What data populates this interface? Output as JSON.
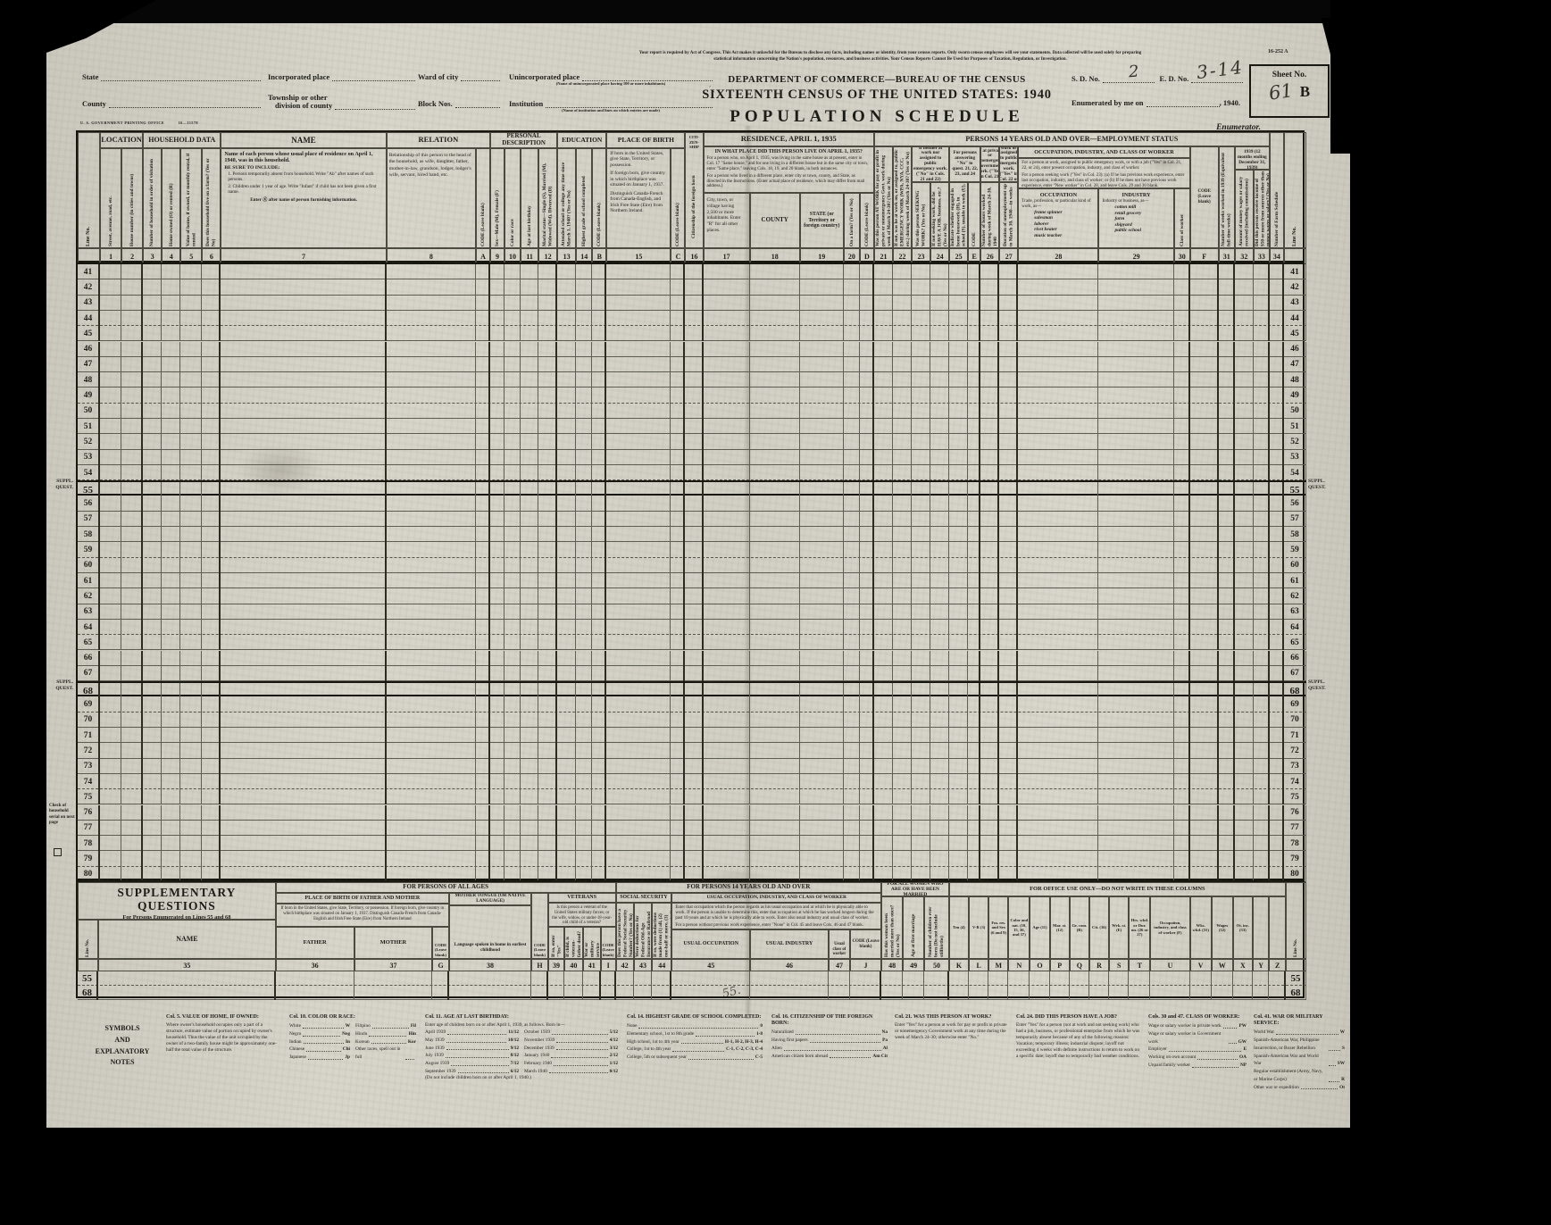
{
  "form_meta": {
    "form_number": "16-252 A",
    "printing_office": "U. S. GOVERNMENT PRINTING OFFICE",
    "printing_code": "16—11578"
  },
  "masthead": {
    "legal_notice": "Your report is required by Act of Congress. This Act makes it unlawful for the Bureau to disclose any facts, including names or identity, from your census reports. Only sworn census employees will see your statements. Data collected will be used solely for preparing statistical information concerning the Nation's population, resources, and business activities. Your Census Reports Cannot Be Used for Purposes of Taxation, Regulation, or Investigation.",
    "department": "DEPARTMENT OF COMMERCE—BUREAU OF THE CENSUS",
    "census": "SIXTEENTH CENSUS OF THE UNITED STATES: 1940",
    "schedule": "POPULATION SCHEDULE",
    "fields": {
      "state": "State",
      "county": "County",
      "incorporated_place": "Incorporated place",
      "township_line1": "Township or other",
      "township_line2": "division of county",
      "ward": "Ward of city",
      "block": "Block Nos.",
      "unincorporated": "Unincorporated place",
      "unincorporated_note": "(Name of unincorporated place having 100 or more inhabitants)",
      "institution": "Institution",
      "institution_note": "(Name of institution and lines on which entries are made)"
    },
    "sd_label": "S. D. No.",
    "sd_value": "2",
    "ed_label": "E. D. No.",
    "ed_value": "3-14",
    "sheet_label": "Sheet No.",
    "sheet_value": "61",
    "sheet_series": "B",
    "enumerated_label": "Enumerated by me on",
    "year_suffix": ", 1940.",
    "enumerator": "Enumerator."
  },
  "annotations": {
    "stray_mark": "55."
  },
  "main_table": {
    "line_start": 41,
    "line_end": 80,
    "bold_lines": [
      55,
      68
    ],
    "margin_marker_line1": "SUPPL.",
    "margin_marker_line2": "QUEST.",
    "margin_note": "Check of household serial on next page",
    "groups": {
      "location": "LOCATION",
      "household": "HOUSEHOLD DATA",
      "name": "NAME",
      "relation": "RELATION",
      "personal": "PERSONAL DESCRIPTION",
      "education": "EDUCATION",
      "pob": "PLACE OF BIRTH",
      "residence": "RESIDENCE, APRIL 1, 1935",
      "employment": "PERSONS 14 YEARS OLD AND OVER—EMPLOYMENT STATUS",
      "g2324": "If neither at work nor assigned to public emergency work. (\"No\" in Cols. 21 and 22)",
      "g25": "For persons answering \"No\" to quest. 21, 22, 23, and 24",
      "g26": "If at private or nonemergency Government work. (\"Yes\" in Col. 21)",
      "g27": "If seeking work or assigned to public emergency work. (\"Yes\" in Col. 22 or 23)",
      "occ_banner": "OCCUPATION, INDUSTRY, AND CLASS OF WORKER",
      "income": "INCOME IN 1939 (12 months ending December 31, 1939)"
    },
    "cols": {
      "line_no": "Line No.",
      "code": "CODE (Leave blank)",
      "e_code": "CODE",
      "c1": "Street, avenue, road, etc.",
      "c2": "House number (in cities and towns)",
      "c3": "Number of household in order of visitation",
      "c4": "Home owned (O) or rented (R)",
      "c5": "Value of home, if owned, or monthly rental, if rented",
      "c6": "Does this household live on a farm? (Yes or No)",
      "c8": "Relationship of this person to the head of the household, as wife, daughter, father, mother-in-law, grandson, lodger, lodger's wife, servant, hired hand, etc.",
      "c9": "Sex—Male (M), Female (F)",
      "c10": "Color or race",
      "c11": "Age at last birthday",
      "c12": "Marital status—Single (S), Married (M), Widowed (Wd), Divorced (D)",
      "c13": "Attended school or college any time since March 1, 1940? (Yes or No)",
      "c14": "Highest grade of school completed",
      "c16_top": [
        "CITI-",
        "ZEN-",
        "SHIP"
      ],
      "c16": "Citizenship of the foreign born",
      "c17": "City, town, or village having 2,500 or more inhabitants. Enter \"R\" for all other places.",
      "c18": "COUNTY",
      "c19": "STATE (or Territory or foreign country)",
      "c20": "On a farm? (Yes or No)",
      "c21": "Was this person AT WORK for pay or profit in private or nonemergency Govt. work during week of March 24-30? (Yes or No)",
      "c22": "If not, was he at work on, or assigned to, public EMERGENCY WORK (WPA, NYA, CCC, etc.) during week of March 24-30? (Yes or No)",
      "c23": "Was this person SEEKING WORK? (Yes or No)",
      "c24": "If not seeking work, did he HAVE A JOB, business, etc.? (Yes or No)",
      "c25": "Indicate whether engaged in home housework (H), in school (S), unable to work (U), or other (Ot)",
      "c26": "Number of hours worked during week of March 24-30, 1940",
      "c27": "Duration of unemployment up to March 30, 1940—in weeks",
      "c30": "Class of worker",
      "c31": "Number of weeks worked in 1939 (Equivalent full-time weeks)",
      "c32": "Amount of money wages or salary received (including commissions)",
      "c33": "Did this person receive income of $50 or more from sources other than money wages or salary? (Yes or No)",
      "c34": "Number of Farm Schedule"
    },
    "name_col": {
      "title": "Name of each person whose usual place of residence on April 1, 1940, was in this household.",
      "be_sure": "BE SURE TO INCLUDE:",
      "item1": "1. Persons temporarily absent from household. Write \"Ab\" after names of such persons.",
      "item2": "2. Children under 1 year of age. Write \"Infant\" if child has not been given a first name.",
      "enter_note": "Enter Ⓧ after name of person furnishing information."
    },
    "pob_col": {
      "p1": "If born in the United States, give State, Territory, or possession.",
      "p2": "If foreign born, give country in which birthplace was situated on January 1, 1937.",
      "p3": "Distinguish Canada-French from Canada-English, and Irish Free State (Eire) from Northern Ireland."
    },
    "residence": {
      "question": "IN WHAT PLACE DID THIS PERSON LIVE ON APRIL 1, 1935?",
      "p1": "For a person who, on April 1, 1935, was living in the same house as at present, enter in Col. 17 \"Same house,\" and for one living in a different house but in the same city or town, enter \"Same place,\" leaving Cols. 18, 19, and 20 blank, in both instances.",
      "p2": "For a person who lived in a different place, enter city or town, county, and State, as directed in the Instructions. (Enter actual place of residence, which may differ from mail address.)"
    },
    "occ": {
      "p1": "For a person at work, assigned to public emergency work, or with a job (\"Yes\" in Col. 21, 22, or 24), enter present occupation, industry, and class of worker.",
      "p2": "For a person seeking work (\"Yes\" in Col. 23): (a) If he has previous work experience, enter last occupation, industry, and class of worker; or (b) If he does not have previous work experience, enter \"New worker\" in Col. 28, and leave Cols. 29 and 30 blank.",
      "occupation": {
        "title": "OCCUPATION",
        "lead": "Trade, profession, or particular kind of work, as—",
        "examples": [
          "frame spinner",
          "salesman",
          "laborer",
          "rivet heater",
          "music teacher"
        ]
      },
      "industry": {
        "title": "INDUSTRY",
        "lead": "Industry or business, as—",
        "examples": [
          "cotton mill",
          "retail grocery",
          "farm",
          "shipyard",
          "public school"
        ]
      }
    }
  },
  "supplementary": {
    "box": {
      "title": "SUPPLEMENTARY QUESTIONS",
      "subtitle": "For Persons Enumerated on Lines 55 and 68"
    },
    "banners": {
      "all_ages": "FOR PERSONS OF ALL AGES",
      "fourteen": "FOR PERSONS 14 YEARS OLD AND OVER",
      "women": "FOR ALL WOMEN WHO ARE OR HAVE BEEN MARRIED",
      "office": "FOR OFFICE USE ONLY—DO NOT WRITE IN THESE COLUMNS"
    },
    "groups": {
      "pob_fm": "PLACE OF BIRTH OF FATHER AND MOTHER",
      "pob_desc": "If born in the United States, give State, Territory, or possession. If foreign born, give country in which birthplace was situated on January 1, 1937. Distinguish Canada-French from Canada-English and Irish Free State (Eire) from Northern Ireland",
      "mother_tongue": "MOTHER TONGUE (OR NATIVE LANGUAGE)",
      "veterans": "VETERANS",
      "veterans_q": "Is this person a veteran of the United States military forces; or the wife, widow, or under-18-year-old child of a veteran?",
      "social_security": "SOCIAL SECURITY",
      "usual_banner": "USUAL OCCUPATION, INDUSTRY, AND CLASS OF WORKER",
      "usual_p1": "Enter that occupation which the person regards as his usual occupation and at which he is physically able to work. If the person is unable to determine this, enter that occupation at which he has worked longest during the past 10 years and at which he is physically able to work. Enter also usual industry and usual class of worker.",
      "usual_p2": "For a person without previous work experience, enter \"None\" in Col. 45 and leave Cols. 46 and 47 blank."
    },
    "cols": {
      "line_no": "Line No.",
      "name": "NAME",
      "father": "FATHER",
      "mother": "MOTHER",
      "code": "CODE (Leave blank)",
      "c38": "Language spoken in home in earliest childhood",
      "c39": "If so, enter \"Yes\"",
      "c40": "If child, is veteran-father dead? (Yes or No)",
      "c41": "War or military service",
      "c42": "Does this person have a Federal Social Security Number? (Yes or No)",
      "c43": "Were deductions for Federal Old-Age Insurance or Railroad Retirement made from this person's wages or salary in 1939? (Yes or No)",
      "c44": "If so, were deductions made from (1) all, (2) one-half or more, (3) part, but less than half, of wages or salary?",
      "c45": "USUAL OCCUPATION",
      "c46": "USUAL INDUSTRY",
      "c47": "Usual class of worker",
      "c48": "Has this woman been married more than once? (Yes or No)",
      "c49": "Age at first marriage",
      "c50": "Number of children ever born (Do not include stillbirths)"
    },
    "office": {
      "K": "Ten (4)",
      "L": "V-R (3)",
      "M": "Fm. res. and Sex (6 and 9)",
      "N": "Color and nat. (10, 15, 36, and 37)",
      "O": "Age (11)",
      "P": "Mar. st. (12)",
      "Q": "Gr. com. (B)",
      "R": "Cit. (16)",
      "S": "Wrk. st. (E)",
      "T": "Hrs. wkd. or Dur. un. (26 or 27)",
      "U": "Occupation, industry, and class of worker (F)",
      "V": "Wks. wkd. (31)",
      "W": "Wages (32)",
      "X": "Ot. inc. (33)",
      "Y": "",
      "Z": ""
    },
    "rows": [
      "55",
      "68"
    ]
  },
  "notes": {
    "heading": [
      "SYMBOLS",
      "AND",
      "EXPLANATORY",
      "NOTES"
    ],
    "items": [
      {
        "title": "Col. 5. VALUE OF HOME, IF OWNED:",
        "body": "Where owner's household occupies only a part of a structure, estimate value of portion occupied by owner's household. Thus the value of the unit occupied by the owner of a two-family house might be approximately one-half the total value of the structure."
      },
      {
        "title": "Col. 10. COLOR OR RACE:",
        "pairs": [
          [
            "White",
            "W"
          ],
          [
            "Negro",
            "Neg"
          ],
          [
            "Indian",
            "In"
          ],
          [
            "Chinese",
            "Chi"
          ],
          [
            "Japanese",
            "Jp"
          ],
          [
            "Filipino",
            "Fil"
          ],
          [
            "Hindu",
            "Hin"
          ],
          [
            "Korean",
            "Kor"
          ],
          [
            "Other races, spell out in full",
            ""
          ]
        ]
      },
      {
        "title": "Col. 11. AGE AT LAST BIRTHDAY:",
        "body": "Enter age of children born on or after April 1, 1939, as follows. Born in—",
        "pairs": [
          [
            "April 1939",
            "11/12"
          ],
          [
            "May 1939",
            "10/12"
          ],
          [
            "June 1939",
            "9/12"
          ],
          [
            "July 1939",
            "8/12"
          ],
          [
            "August 1939",
            "7/12"
          ],
          [
            "September 1939",
            "6/12"
          ],
          [
            "October 1939",
            "5/12"
          ],
          [
            "November 1939",
            "4/12"
          ],
          [
            "December 1939",
            "3/12"
          ],
          [
            "January 1940",
            "2/12"
          ],
          [
            "February 1940",
            "1/12"
          ],
          [
            "March 1940",
            "0/12"
          ]
        ],
        "extra": "(Do not include children born on or after April 1, 1940.)"
      },
      {
        "title": "Col. 14. HIGHEST GRADE OF SCHOOL COMPLETED:",
        "pairs": [
          [
            "None",
            "0"
          ],
          [
            "Elementary school, 1st to 8th grade",
            "1-8"
          ],
          [
            "High school, 1st to 4th year",
            "H-1, H-2, H-3, H-4"
          ],
          [
            "College, 1st to 4th year",
            "C-1, C-2, C-3, C-4"
          ],
          [
            "College, 5th or subsequent year",
            "C-5"
          ]
        ]
      },
      {
        "title": "Col. 16. CITIZENSHIP OF THE FOREIGN BORN:",
        "pairs": [
          [
            "Naturalized",
            "Na"
          ],
          [
            "Having first papers",
            "Pa"
          ],
          [
            "Alien",
            "Al"
          ],
          [
            "American citizen born abroad",
            "Am Cit"
          ]
        ]
      },
      {
        "title": "Col. 21. WAS THIS PERSON AT WORK?",
        "body": "Enter \"Yes\" for a person at work for pay or profit in private or nonemergency Government work at any time during the week of March 24-30; otherwise enter \"No.\""
      },
      {
        "title": "Col. 24. DID THIS PERSON HAVE A JOB?",
        "body": "Enter \"Yes\" for a person (not at work and not seeking work) who had a job, business, or professional enterprise from which he was temporarily absent because of any of the following reasons: Vacation; temporary illness; industrial dispute; layoff not exceeding 4 weeks with definite instructions to return to work on a specific date; layoff due to temporarily bad weather conditions."
      },
      {
        "title": "Cols. 30 and 47. CLASS OF WORKER:",
        "pairs": [
          [
            "Wage or salary worker in private work",
            "PW"
          ],
          [
            "Wage or salary worker in Government work",
            "GW"
          ],
          [
            "Employer",
            "E"
          ],
          [
            "Working on own account",
            "OA"
          ],
          [
            "Unpaid family worker",
            "NP"
          ]
        ]
      },
      {
        "title": "Col. 41. WAR OR MILITARY SERVICE:",
        "pairs": [
          [
            "World War",
            "W"
          ],
          [
            "Spanish-American War, Philippine Insurrection, or Boxer Rebellion",
            "S"
          ],
          [
            "Spanish-American War and World War",
            "SW"
          ],
          [
            "Regular establishment (Army, Navy, or Marine Corps)",
            "R"
          ],
          [
            "Other war or expedition",
            "Ot"
          ]
        ]
      }
    ]
  }
}
